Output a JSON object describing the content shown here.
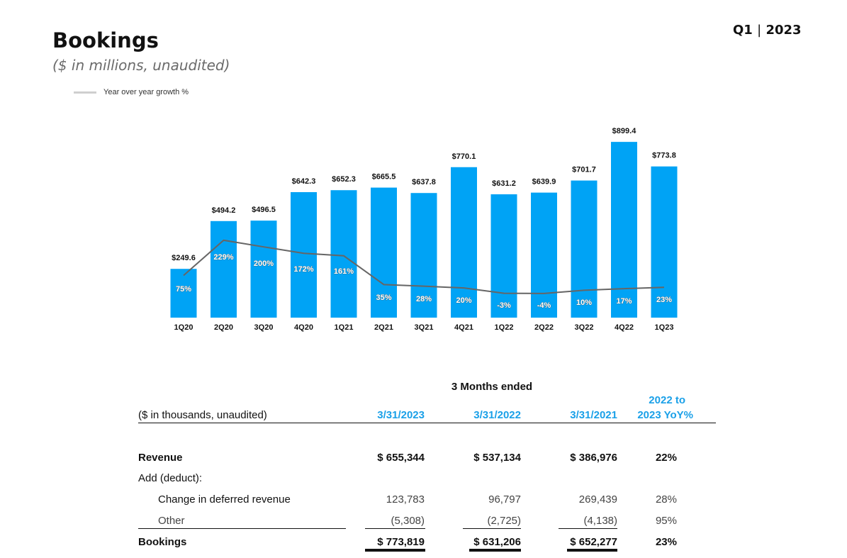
{
  "header": {
    "title": "Bookings",
    "subtitle": "($ in millions, unaudited)",
    "period_prefix": "Q1",
    "period_year": "2023"
  },
  "legend": {
    "label": "Year over year growth %"
  },
  "colors": {
    "bar": "#00a3f5",
    "line": "#666666",
    "accent": "#1aa0e8"
  },
  "chart_data": {
    "type": "bar",
    "categories": [
      "1Q20",
      "2Q20",
      "3Q20",
      "4Q20",
      "1Q21",
      "2Q21",
      "3Q21",
      "4Q21",
      "1Q22",
      "2Q22",
      "3Q22",
      "4Q22",
      "1Q23"
    ],
    "series": [
      {
        "name": "",
        "type": "bar",
        "values": [
          249.6,
          494.2,
          496.5,
          642.3,
          652.3,
          665.5,
          637.8,
          770.1,
          631.2,
          639.9,
          701.7,
          899.4,
          773.8
        ],
        "labels": [
          "$249.6",
          "$494.2",
          "$496.5",
          "$642.3",
          "$652.3",
          "$665.5",
          "$637.8",
          "$770.1",
          "$631.2",
          "$639.9",
          "$701.7",
          "$899.4",
          "$773.8"
        ]
      },
      {
        "name": "Year over year growth %",
        "type": "line",
        "values": [
          75,
          229,
          200,
          172,
          161,
          35,
          28,
          20,
          -3,
          -4,
          10,
          17,
          23
        ],
        "labels": [
          "75%",
          "229%",
          "200%",
          "172%",
          "161%",
          "35%",
          "28%",
          "20%",
          "-3%",
          "-4%",
          "10%",
          "17%",
          "23%"
        ]
      }
    ],
    "legend": "top-left",
    "grid": false
  },
  "table": {
    "group_header": "3 Months ended",
    "units_label": "($ in thousands, unaudited)",
    "columns": [
      "3/31/2023",
      "3/31/2022",
      "3/31/2021"
    ],
    "yoy_header_line1": "2022 to",
    "yoy_header_line2": "2023 YoY%",
    "rows": [
      {
        "label": "Revenue",
        "values": [
          "$ 655,344",
          "$ 537,134",
          "$ 386,976"
        ],
        "yoy": "22%"
      },
      {
        "label": "Add (deduct):",
        "values": [
          "",
          "",
          ""
        ],
        "yoy": ""
      },
      {
        "label": "Change in deferred revenue",
        "values": [
          "123,783",
          "96,797",
          "269,439"
        ],
        "yoy": "28%"
      },
      {
        "label": "Other",
        "values": [
          "(5,308)",
          "(2,725)",
          "(4,138)"
        ],
        "yoy": "95%"
      },
      {
        "label": "Bookings",
        "values": [
          "$ 773,819",
          "$ 631,206",
          "$ 652,277"
        ],
        "yoy": "23%"
      }
    ]
  }
}
